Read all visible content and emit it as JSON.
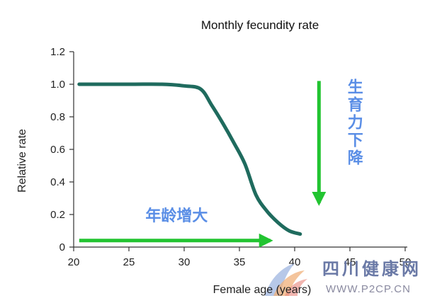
{
  "chart_data": {
    "type": "line",
    "title": "Monthly fecundity rate",
    "xlabel": "Female age (years)",
    "ylabel": "Relative rate",
    "xlim": [
      20,
      50
    ],
    "ylim": [
      0,
      1.2
    ],
    "x_ticks": [
      "20",
      "25",
      "30",
      "35",
      "40",
      "45",
      "50"
    ],
    "y_ticks": [
      "0",
      "0.2",
      "0.4",
      "0.6",
      "0.8",
      "1.0",
      "1.2"
    ],
    "grid": false,
    "series": [
      {
        "color": "#1f6b5e",
        "x": [
          20.5,
          25,
          28,
          30,
          31.5,
          32.5,
          33.5,
          34.5,
          35.5,
          36.5,
          37.5,
          38.5,
          39.5,
          40.5
        ],
        "y": [
          1.0,
          1.0,
          1.0,
          0.99,
          0.97,
          0.87,
          0.76,
          0.64,
          0.51,
          0.32,
          0.22,
          0.15,
          0.1,
          0.08
        ]
      }
    ],
    "annotations": [
      {
        "text": "年龄增大",
        "direction": "right",
        "arrow_from": [
          20.5,
          0.04
        ],
        "arrow_to": [
          37.8,
          0.04
        ],
        "label_at": [
          26.5,
          0.16
        ],
        "color": "#22c431",
        "text_color": "#5a8ee6"
      },
      {
        "text": "生育力下降",
        "direction": "down",
        "arrow_from": [
          42.2,
          1.02
        ],
        "arrow_to": [
          42.2,
          0.27
        ],
        "label_at": [
          45.5,
          0.95
        ],
        "color": "#22c431",
        "text_color": "#5a8ee6"
      }
    ]
  },
  "watermark": {
    "text_cn": "四川健康网",
    "url": "WWW.P2CP.CN"
  }
}
